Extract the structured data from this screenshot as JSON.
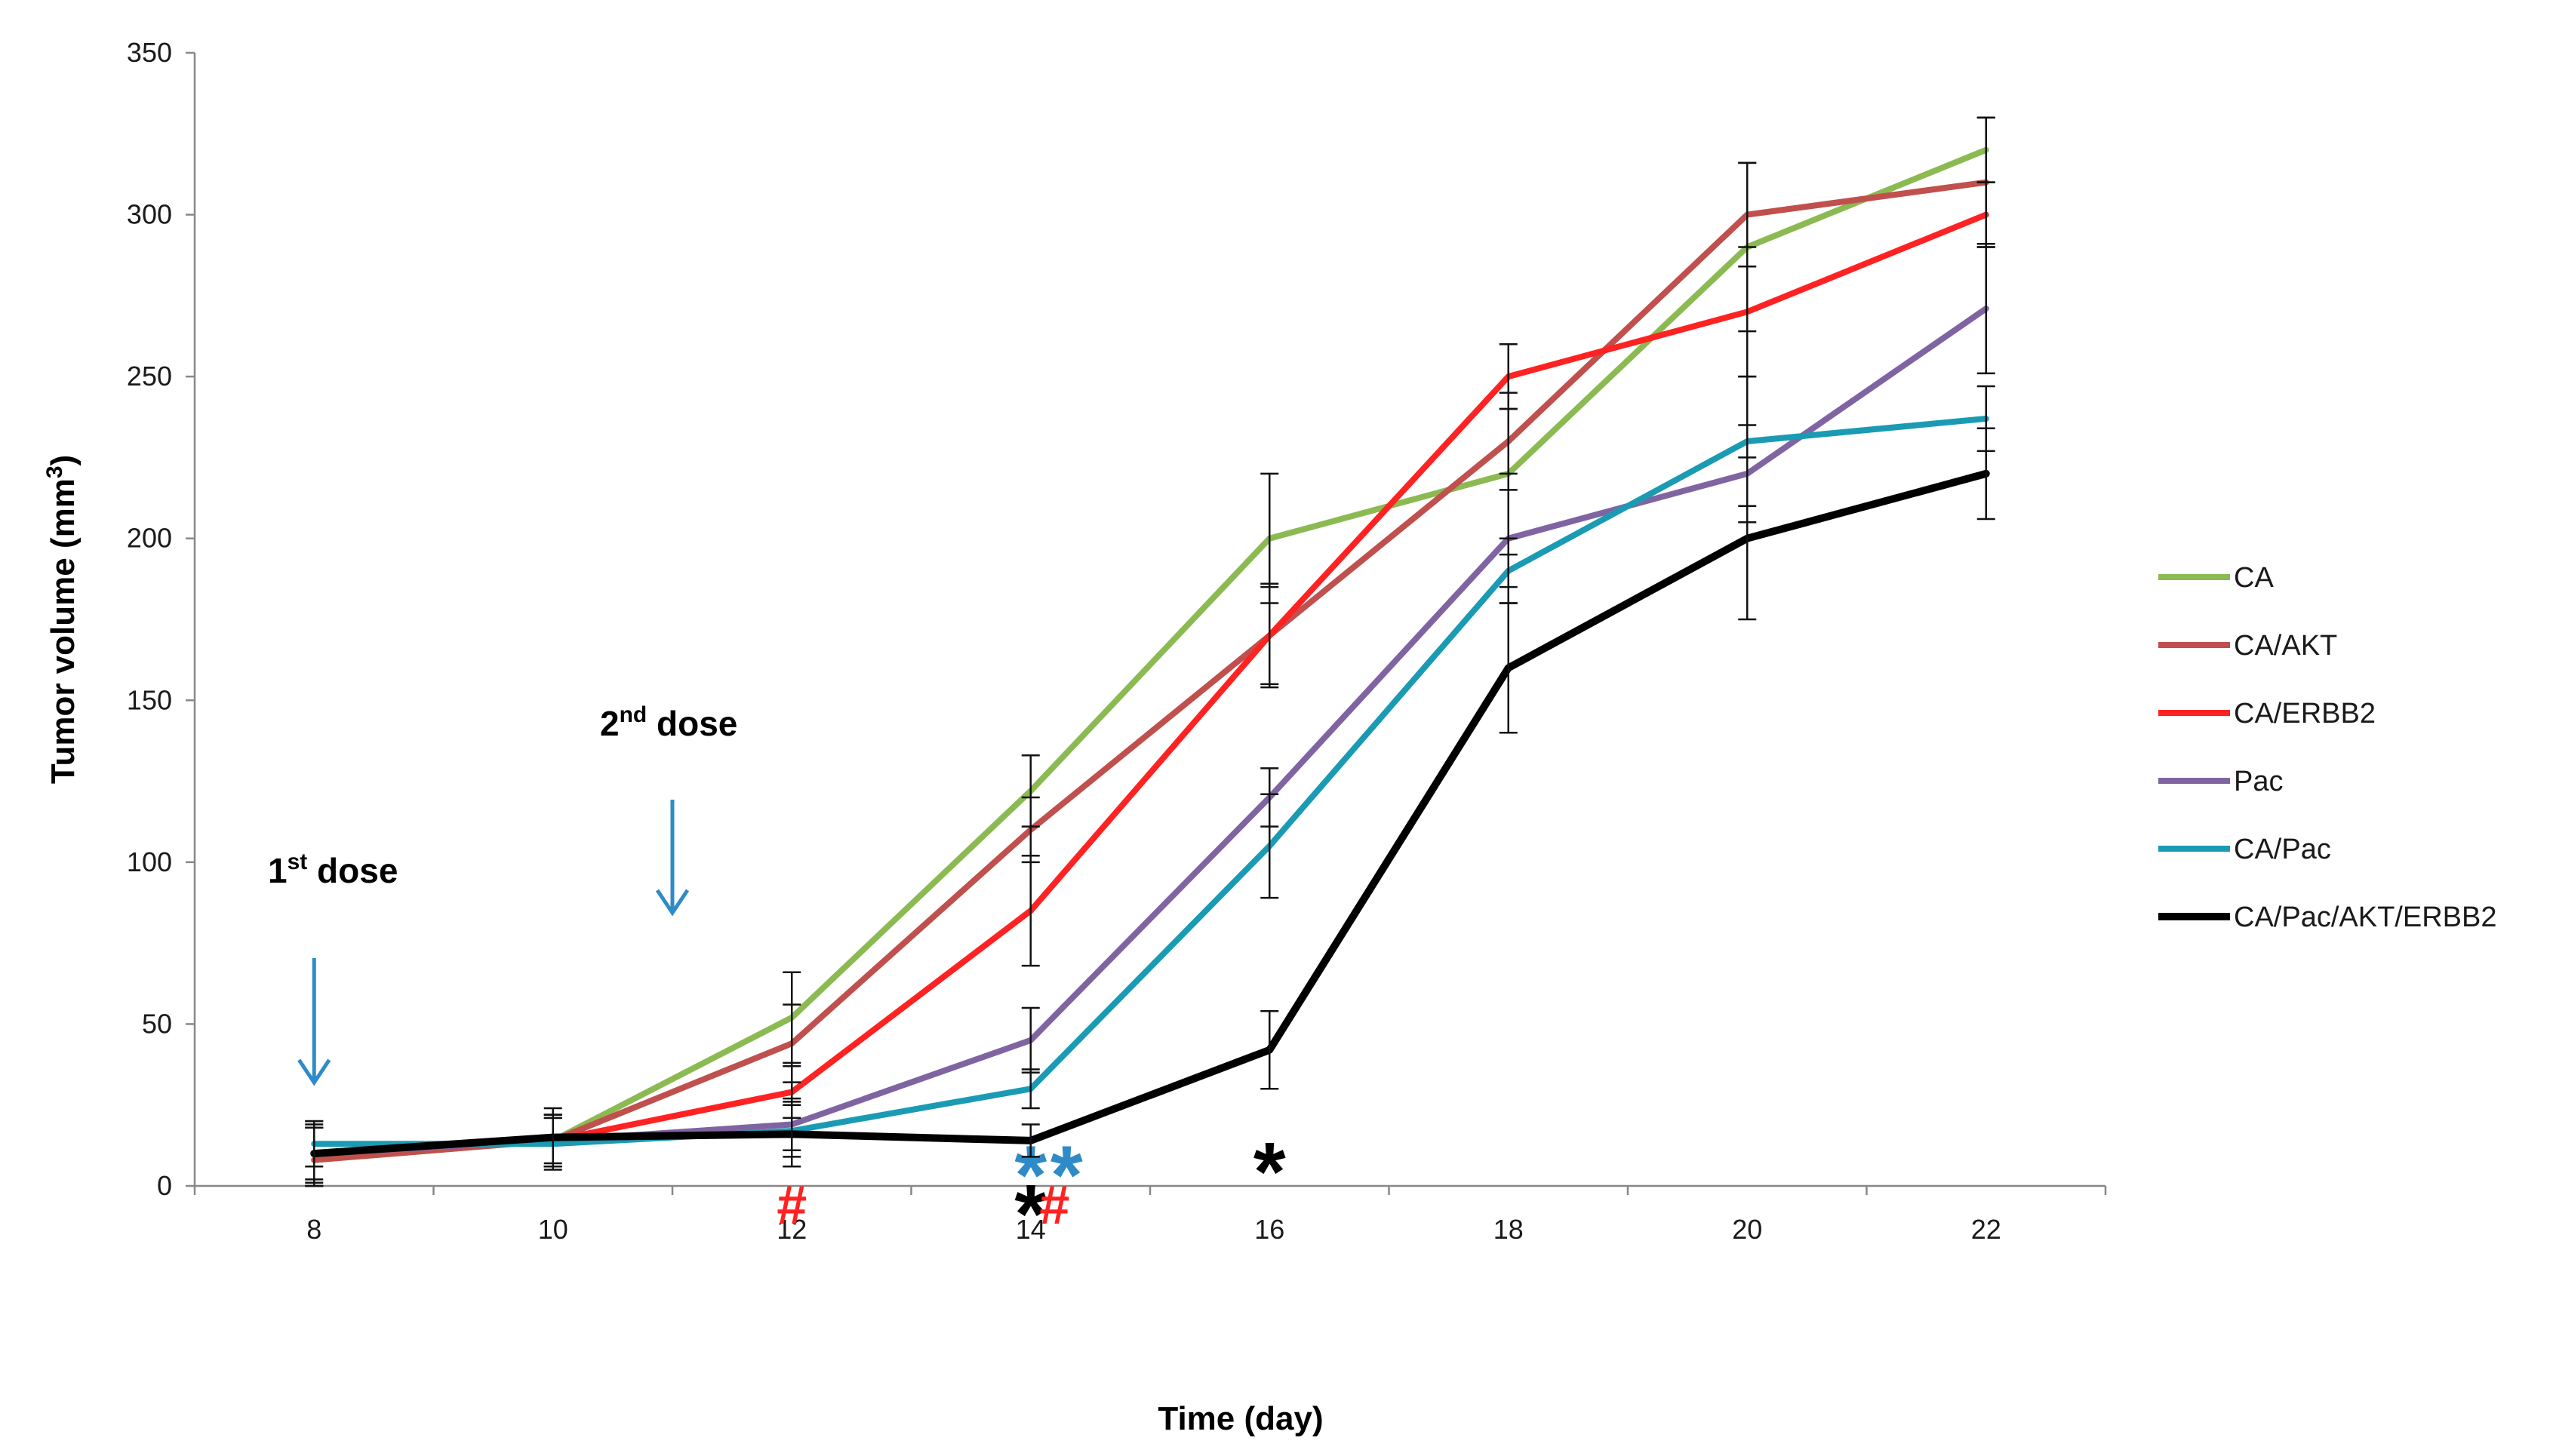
{
  "chart_data": {
    "type": "line",
    "title": "",
    "xlabel": "Time (day)",
    "ylabel_main": "Tumor volume (mm",
    "ylabel_sup": "3",
    "ylabel_end": ")",
    "x": [
      8,
      10,
      12,
      14,
      16,
      18,
      20,
      22
    ],
    "xlim": [
      7,
      23
    ],
    "ylim": [
      0,
      350
    ],
    "yticks": [
      0,
      50,
      100,
      150,
      200,
      250,
      300,
      350
    ],
    "grid": false,
    "legend_position": "right",
    "series": [
      {
        "name": "CA",
        "color": "#8cba52",
        "values": [
          8,
          14,
          52,
          122,
          200,
          220,
          290,
          320
        ],
        "errors": [
          10,
          8,
          14,
          11,
          20,
          25,
          26,
          10
        ]
      },
      {
        "name": "CA/AKT",
        "color": "#c0504d",
        "values": [
          8,
          14,
          44,
          110,
          170,
          230,
          300,
          310
        ],
        "errors": [
          10,
          8,
          12,
          10,
          15,
          10,
          16,
          20
        ]
      },
      {
        "name": "CA/ERBB2",
        "color": "#ff2222",
        "values": [
          10,
          14,
          29,
          85,
          170,
          250,
          270,
          300
        ],
        "errors": [
          8,
          7,
          8,
          17,
          16,
          10,
          20,
          10
        ]
      },
      {
        "name": "Pac",
        "color": "#8064a2",
        "values": [
          10,
          14,
          19,
          45,
          120,
          200,
          220,
          271
        ],
        "errors": [
          10,
          8,
          8,
          10,
          9,
          15,
          15,
          20
        ]
      },
      {
        "name": "CA/Pac",
        "color": "#1a9bb3",
        "values": [
          13,
          13,
          17,
          30,
          105,
          190,
          230,
          237
        ],
        "errors": [
          7,
          8,
          8,
          6,
          16,
          10,
          20,
          10
        ]
      },
      {
        "name": "CA/Pac/AKT/ERBB2",
        "color": "#000000",
        "values": [
          10,
          15,
          16,
          14,
          42,
          160,
          200,
          220
        ],
        "errors": [
          9,
          9,
          10,
          5,
          12,
          20,
          25,
          14
        ]
      }
    ],
    "annotations": [
      {
        "id": "dose1",
        "text": "1",
        "sup": "st",
        "rest": " dose",
        "arrow_x": 8,
        "arrow_color": "#2e8bc8"
      },
      {
        "id": "dose2",
        "text": "2",
        "sup": "nd",
        "rest": " dose",
        "arrow_x": 11,
        "arrow_color": "#2e8bc8"
      }
    ],
    "significance_markers": [
      {
        "symbol": "#",
        "x": 12,
        "y": 0,
        "color": "#ff2222"
      },
      {
        "symbol": "*",
        "x": 14,
        "y": 0,
        "color": "#000000"
      },
      {
        "symbol": "#",
        "x": 14.2,
        "y": 0,
        "color": "#ff2222"
      },
      {
        "symbol": "*",
        "x": 14,
        "y": 12,
        "color": "#2e8bc8"
      },
      {
        "symbol": "*",
        "x": 14.3,
        "y": 12,
        "color": "#2e8bc8"
      },
      {
        "symbol": "*",
        "x": 16,
        "y": 13,
        "color": "#000000"
      }
    ]
  }
}
